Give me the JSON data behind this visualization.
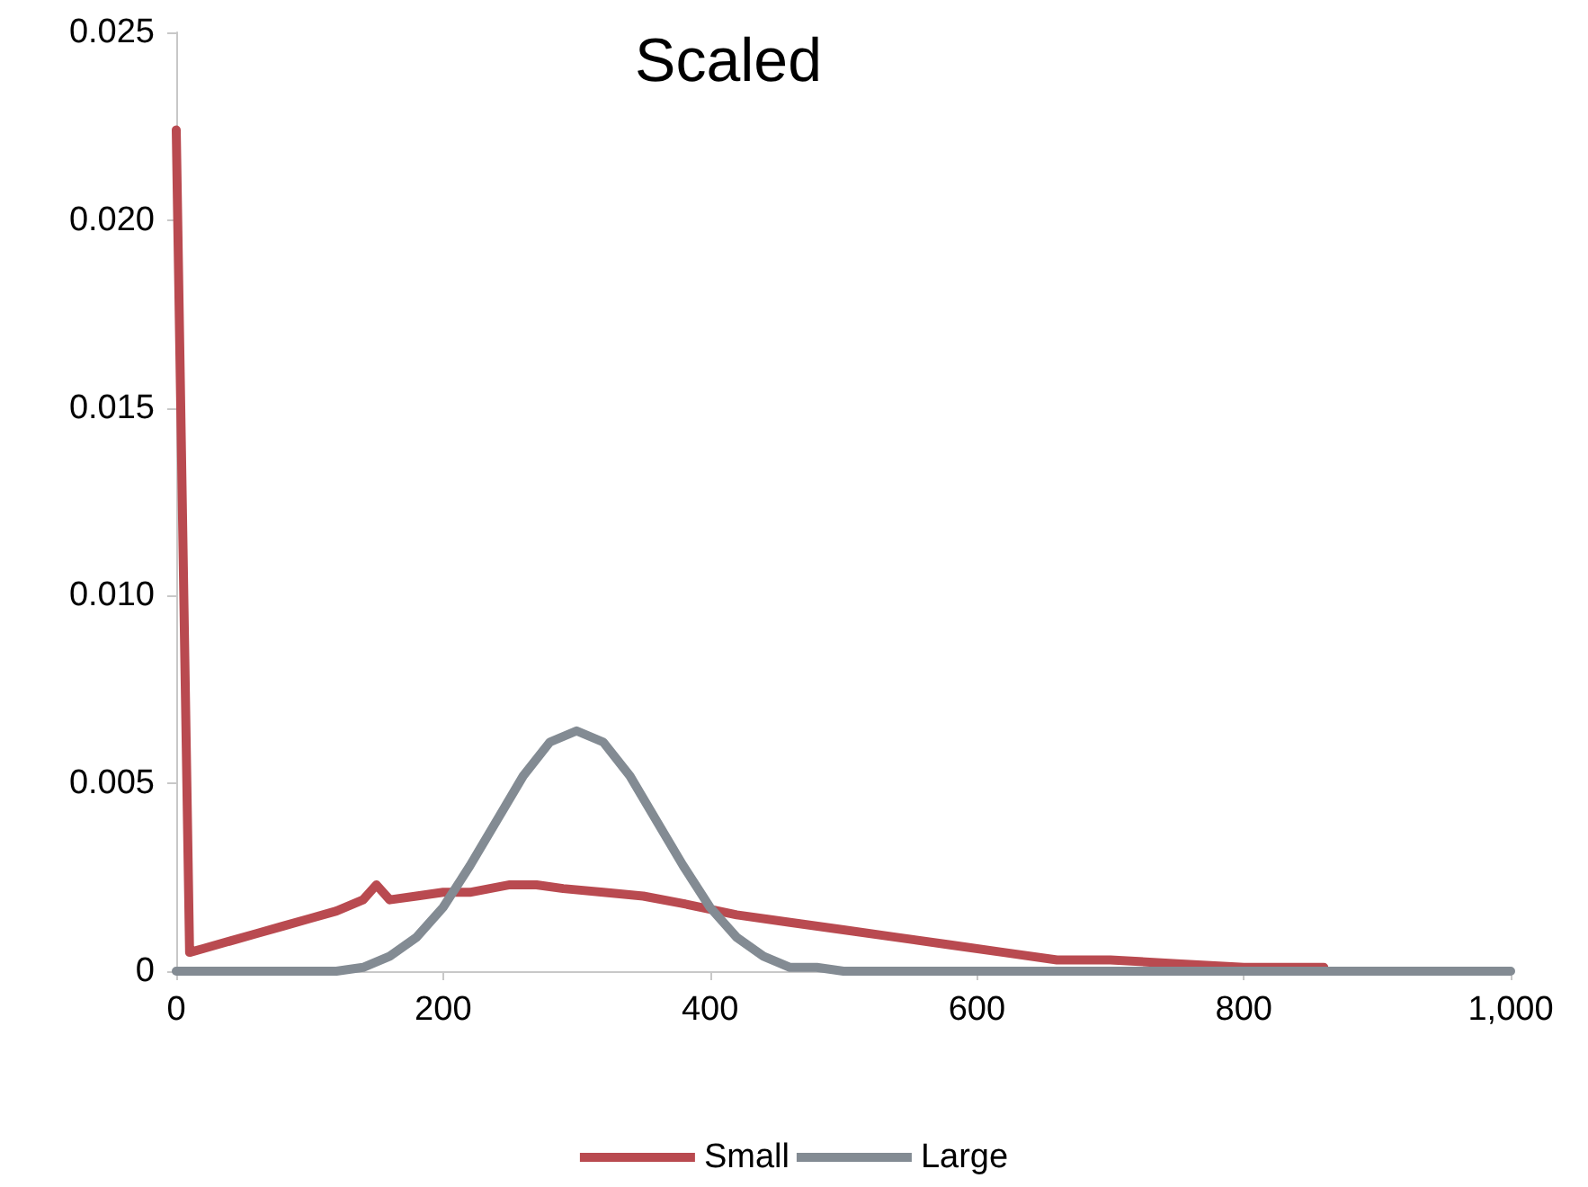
{
  "chart_data": {
    "type": "line",
    "title": "Scaled",
    "series": [
      {
        "name": "Small",
        "color": "#b94a50",
        "x": [
          0,
          10,
          20,
          40,
          60,
          80,
          100,
          120,
          140,
          150,
          160,
          180,
          200,
          220,
          250,
          270,
          290,
          320,
          350,
          380,
          420,
          460,
          500,
          540,
          580,
          620,
          660,
          700,
          750,
          800,
          860
        ],
        "values": [
          0.0224,
          0.0005,
          0.0006,
          0.0008,
          0.001,
          0.0012,
          0.0014,
          0.0016,
          0.0019,
          0.0023,
          0.0019,
          0.002,
          0.0021,
          0.0021,
          0.0023,
          0.0023,
          0.0022,
          0.0021,
          0.002,
          0.0018,
          0.0015,
          0.0013,
          0.0011,
          0.0009,
          0.0007,
          0.0005,
          0.0003,
          0.0003,
          0.0002,
          0.0001,
          0.0001
        ]
      },
      {
        "name": "Large",
        "color": "#838b93",
        "x": [
          0,
          100,
          120,
          140,
          160,
          180,
          200,
          220,
          240,
          260,
          280,
          300,
          320,
          340,
          360,
          380,
          400,
          420,
          440,
          460,
          480,
          500,
          520,
          1000
        ],
        "values": [
          0,
          0,
          0,
          0.0001,
          0.0004,
          0.0009,
          0.0017,
          0.0028,
          0.004,
          0.0052,
          0.0061,
          0.0064,
          0.0061,
          0.0052,
          0.004,
          0.0028,
          0.0017,
          0.0009,
          0.0004,
          0.0001,
          0.0001,
          0,
          0,
          0
        ]
      }
    ],
    "xlim": [
      0,
      1000
    ],
    "xticks": [
      0,
      {
        "value": 200,
        "label": "200"
      },
      {
        "value": 400,
        "label": "400"
      },
      {
        "value": 600,
        "label": "600"
      },
      {
        "value": 800,
        "label": "800"
      },
      {
        "value": 1000,
        "label": "1,000"
      }
    ],
    "ylim": [
      0,
      0.025
    ],
    "yticks": [
      0,
      {
        "value": 0.005,
        "label": "0.005"
      },
      {
        "value": 0.01,
        "label": "0.010"
      },
      {
        "value": 0.015,
        "label": "0.015"
      },
      {
        "value": 0.02,
        "label": "0.020"
      },
      {
        "value": 0.025,
        "label": "0.025"
      }
    ],
    "grid": false,
    "legend": "bottom",
    "marker": "none",
    "line_style": "solid"
  }
}
